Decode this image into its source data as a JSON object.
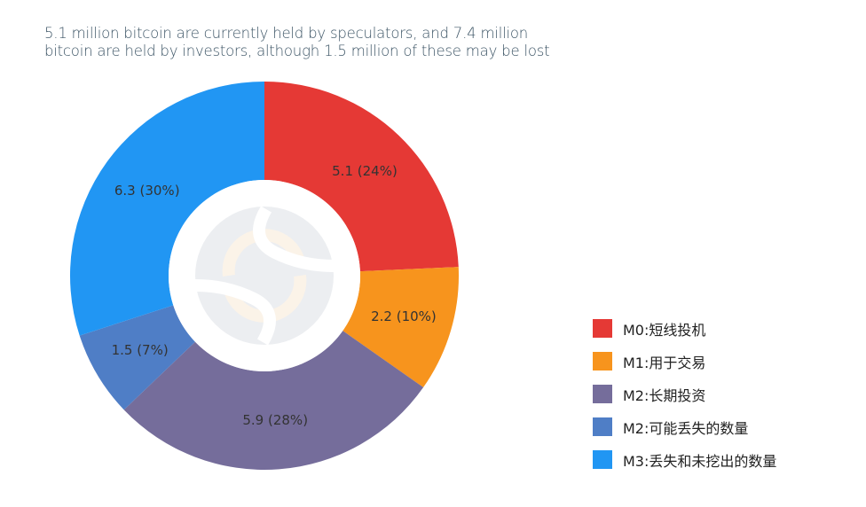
{
  "title": {
    "line1": "5.1 million bitcoin are currently held by speculators, and 7.4 million",
    "line2": "bitcoin are held by investors, although 1.5 million of these may be lost"
  },
  "chart_data": {
    "type": "pie",
    "variant": "donut",
    "title": "5.1 million bitcoin are currently held by speculators, and 7.4 million bitcoin are held by investors, although 1.5 million of these may be lost",
    "start_angle": "12 o'clock, clockwise",
    "categories": [
      "M0:短线投机",
      "M1:用于交易",
      "M2:长期投资",
      "M2:可能丢失的数量",
      "M3:丢失和未挖出的数量"
    ],
    "values": [
      5.1,
      2.2,
      5.9,
      1.5,
      6.3
    ],
    "percentages": [
      24,
      10,
      28,
      7,
      30
    ],
    "data_labels": [
      "5.1 (24%)",
      "2.2 (10%)",
      "5.9 (28%)",
      "1.5 (7%)",
      "6.3 (30%)"
    ],
    "colors": [
      "#e53935",
      "#f7941d",
      "#756d9b",
      "#4f7ec6",
      "#2196f3"
    ],
    "legend_position": "right-bottom",
    "units": "million bitcoin"
  },
  "legend": [
    {
      "label": "M0:短线投机",
      "color": "#e53935"
    },
    {
      "label": "M1:用于交易",
      "color": "#f7941d"
    },
    {
      "label": "M2:长期投资",
      "color": "#756d9b"
    },
    {
      "label": "M2:可能丢失的数量",
      "color": "#4f7ec6"
    },
    {
      "label": "M3:丢失和未挖出的数量",
      "color": "#2196f3"
    }
  ]
}
